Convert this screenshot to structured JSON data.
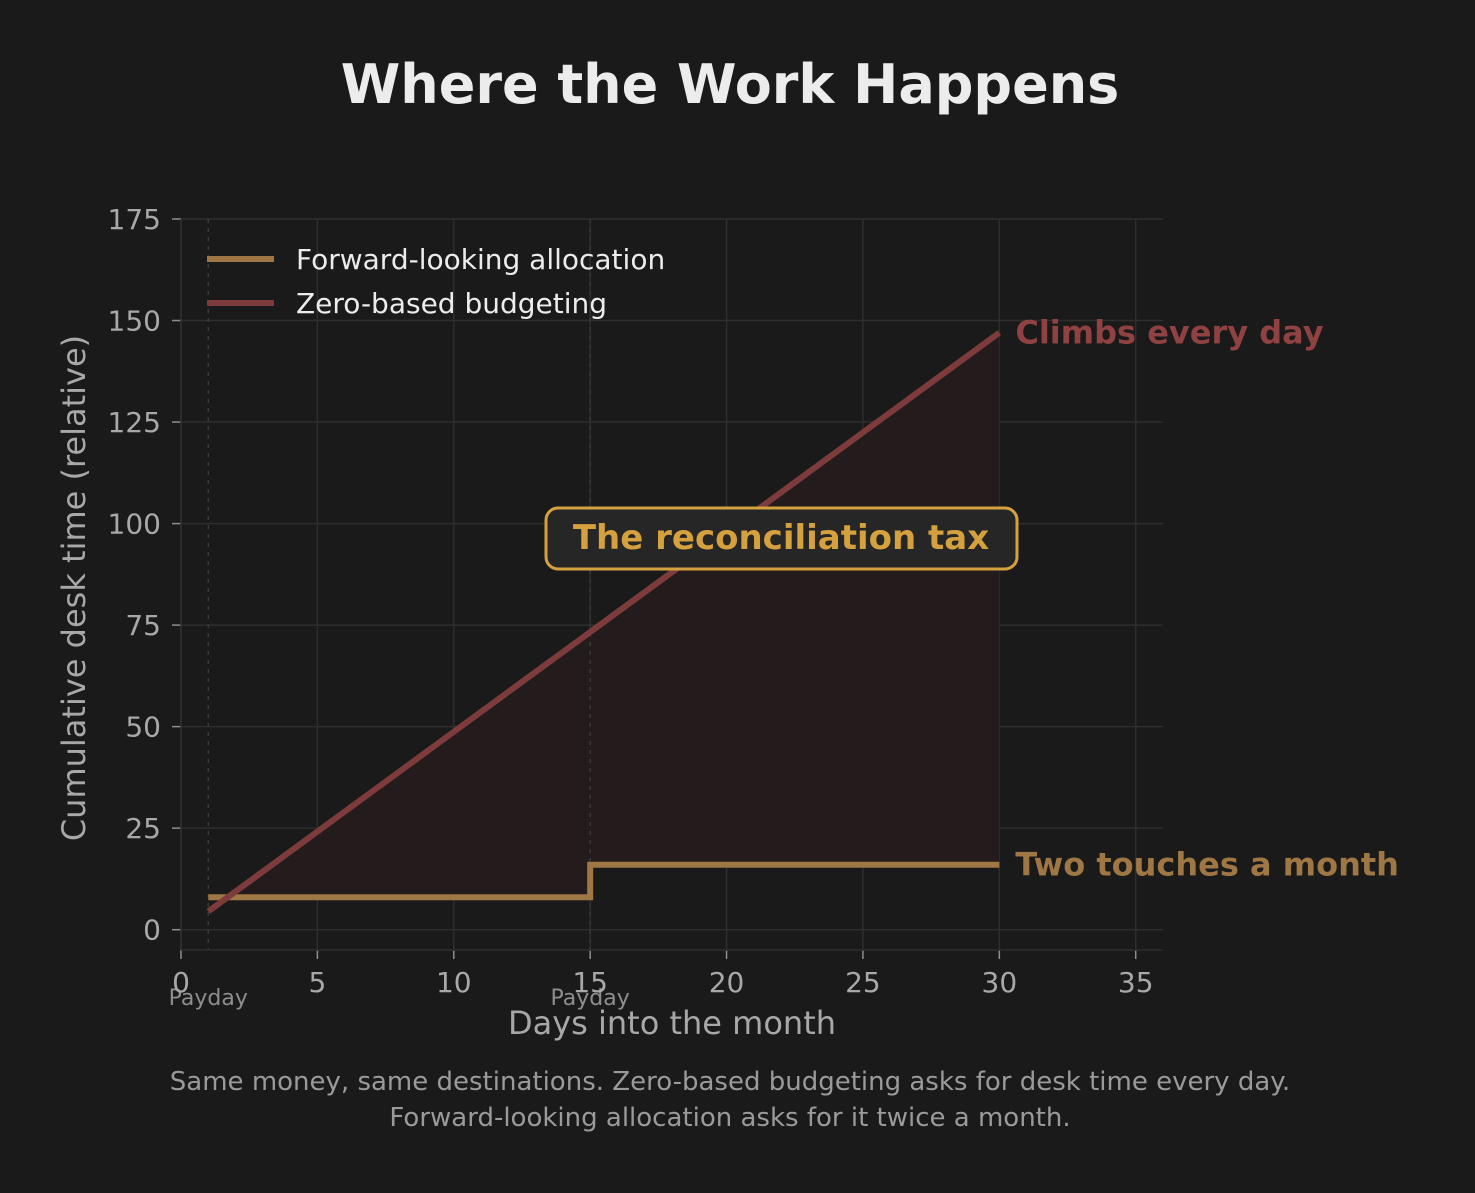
{
  "title": "Where the Work Happens",
  "caption": {
    "line1": "Same money, same destinations. Zero-based budgeting asks for desk time every day.",
    "line2": "Forward-looking allocation asks for it twice a month."
  },
  "colors": {
    "background": "#1a1a1a",
    "zero_based": "#7d3c3b",
    "zero_based_label": "#8f4241",
    "forward": "#9e7745",
    "callout": "#d4a13e",
    "fill": "#241b1c",
    "grid": "#2e2e2e"
  },
  "callout": {
    "text": "The reconciliation tax"
  },
  "chart_data": {
    "type": "line",
    "xlabel": "Days into the month",
    "ylabel": "Cumulative desk time (relative)",
    "xlim": [
      0,
      36
    ],
    "ylim": [
      -5,
      175
    ],
    "xticks": [
      0,
      5,
      10,
      15,
      20,
      25,
      30,
      35
    ],
    "yticks": [
      0,
      25,
      50,
      75,
      100,
      125,
      150,
      175
    ],
    "grid": true,
    "legend_position": "upper-left",
    "paydays": [
      {
        "x": 1,
        "label": "Payday"
      },
      {
        "x": 15,
        "label": "Payday"
      }
    ],
    "series": [
      {
        "name": "Forward-looking allocation",
        "color_key": "forward",
        "step": true,
        "end_label": "Two touches a month",
        "x": [
          1,
          15,
          30
        ],
        "y": [
          8,
          16,
          16
        ]
      },
      {
        "name": "Zero-based budgeting",
        "color_key": "zero_based",
        "step": false,
        "end_label": "Climbs every day",
        "x": [
          1,
          30
        ],
        "y": [
          4.5,
          147
        ]
      }
    ],
    "annotations": [
      "The reconciliation tax",
      "Climbs every day",
      "Two touches a month"
    ]
  }
}
